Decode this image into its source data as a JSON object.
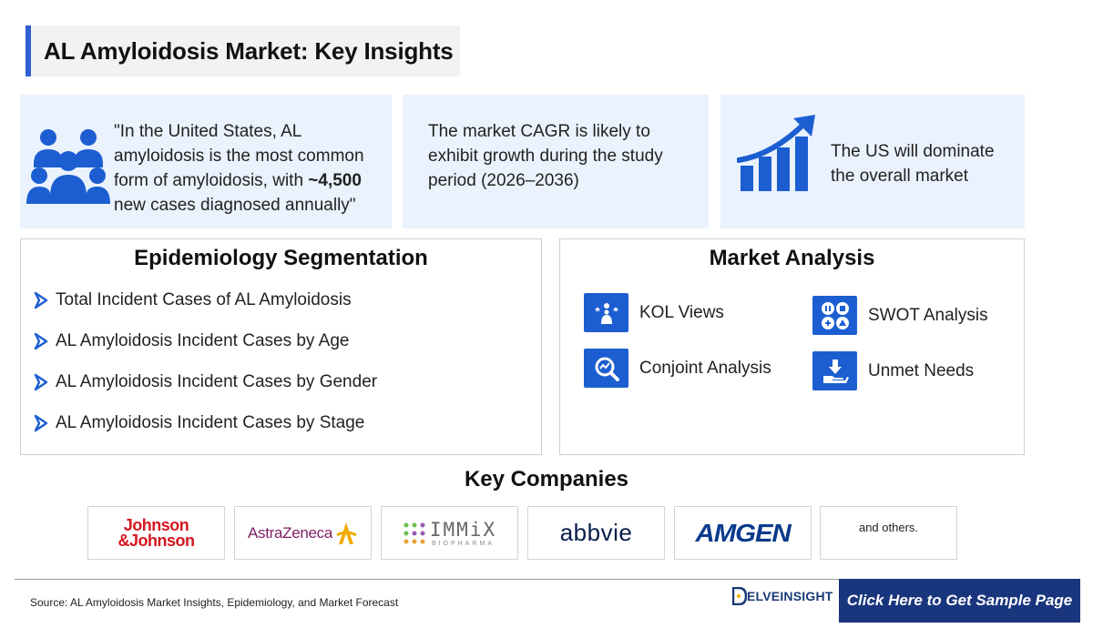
{
  "title": "AL Amyloidosis Market: Key Insights",
  "insights": {
    "card1": {
      "before": "\"In the United States, AL amyloidosis is the most common form of amyloidosis, with ",
      "bold": "~4,500",
      "after": " new cases diagnosed annually\"",
      "icon": "people-group-icon"
    },
    "card2": {
      "text": "The market CAGR is likely to exhibit growth during the study period (2026–2036)"
    },
    "card3": {
      "text": "The US will dominate the overall market",
      "icon": "growth-chart-icon"
    }
  },
  "epidemiology": {
    "heading": "Epidemiology Segmentation",
    "items": [
      "Total Incident Cases of AL Amyloidosis",
      "AL Amyloidosis Incident Cases by Age",
      "AL Amyloidosis Incident Cases by Gender",
      "AL Amyloidosis Incident Cases by Stage"
    ]
  },
  "market_analysis": {
    "heading": "Market Analysis",
    "items": [
      {
        "label": "KOL Views",
        "icon": "kol-icon"
      },
      {
        "label": "SWOT Analysis",
        "icon": "swot-icon"
      },
      {
        "label": "Conjoint Analysis",
        "icon": "conjoint-icon"
      },
      {
        "label": "Unmet Needs",
        "icon": "unmet-needs-icon"
      }
    ]
  },
  "companies": {
    "heading": "Key Companies",
    "logos": {
      "jj_line1": "Johnson",
      "jj_line2": "&Johnson",
      "astrazeneca": "AstraZeneca",
      "immix": "IMMiX",
      "immix_sub": "BIOPHARMA",
      "abbvie": "abbvie",
      "amgen": "AMGEN"
    },
    "others": "and others."
  },
  "footer": {
    "source": "Source: AL Amyloidosis Market Insights, Epidemiology, and Market Forecast",
    "brand": "ELVEINSIGHT",
    "cta": "Click Here to Get Sample Page"
  },
  "colors": {
    "accent": "#1c5ed1",
    "card_bg": "#eaf2fd",
    "cta_bg": "#18357d"
  }
}
